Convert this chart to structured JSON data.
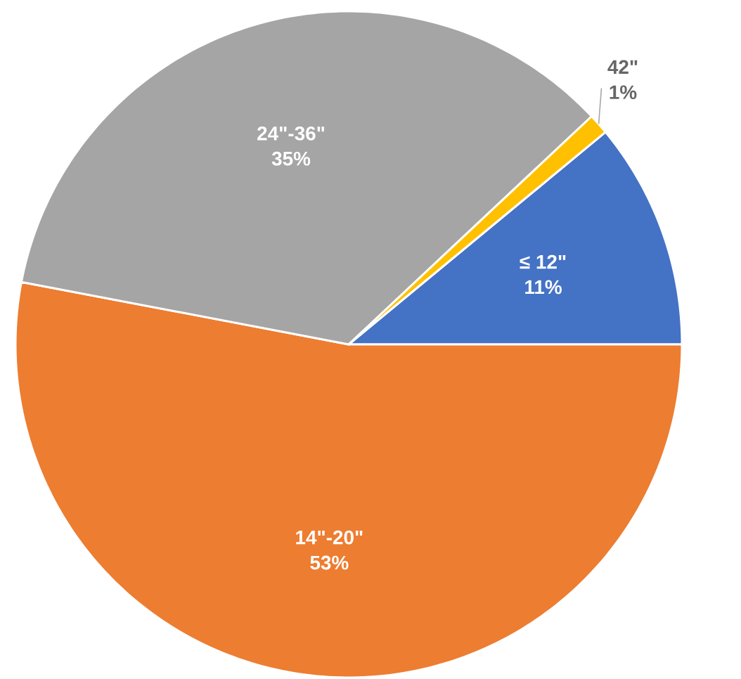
{
  "chart_data": {
    "type": "pie",
    "categories": [
      "≤ 12\"",
      "14\"-20\"",
      "24\"-36\"",
      "42\""
    ],
    "values": [
      11,
      53,
      35,
      1
    ],
    "colors": [
      "#4472c4",
      "#ed7d31",
      "#a5a5a5",
      "#ffc000"
    ],
    "value_labels": [
      "11%",
      "53%",
      "35%",
      "1%"
    ]
  }
}
